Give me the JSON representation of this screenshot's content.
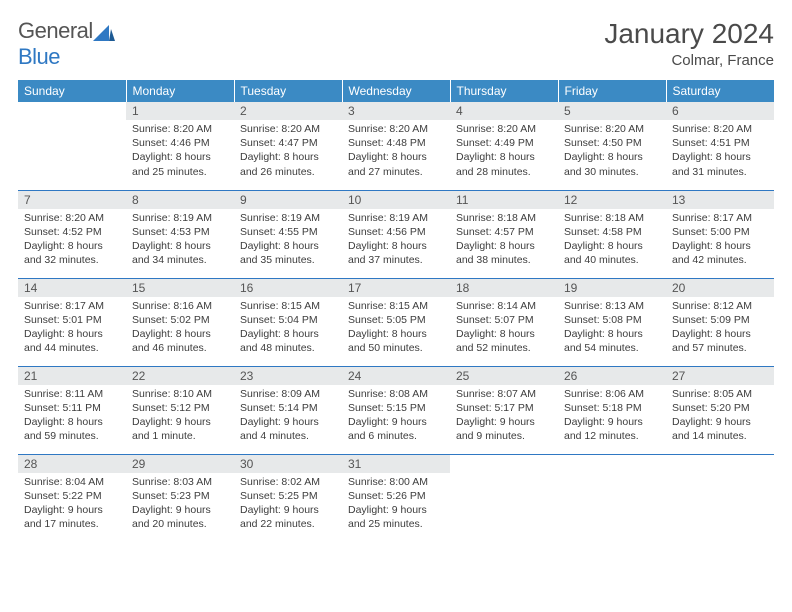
{
  "brand": {
    "part1": "General",
    "part2": "Blue"
  },
  "title": "January 2024",
  "location": "Colmar, France",
  "colors": {
    "header_bg": "#3b8ac4",
    "header_text": "#ffffff",
    "daynum_bg": "#e7e9ea",
    "text": "#3d3d3d",
    "rule": "#2f78c3",
    "brand_gray": "#555555",
    "brand_blue": "#2f78c3"
  },
  "dow": [
    "Sunday",
    "Monday",
    "Tuesday",
    "Wednesday",
    "Thursday",
    "Friday",
    "Saturday"
  ],
  "weeks": [
    [
      {
        "n": "",
        "sr": "",
        "ss": "",
        "dl": ""
      },
      {
        "n": "1",
        "sr": "8:20 AM",
        "ss": "4:46 PM",
        "dl": "8 hours and 25 minutes."
      },
      {
        "n": "2",
        "sr": "8:20 AM",
        "ss": "4:47 PM",
        "dl": "8 hours and 26 minutes."
      },
      {
        "n": "3",
        "sr": "8:20 AM",
        "ss": "4:48 PM",
        "dl": "8 hours and 27 minutes."
      },
      {
        "n": "4",
        "sr": "8:20 AM",
        "ss": "4:49 PM",
        "dl": "8 hours and 28 minutes."
      },
      {
        "n": "5",
        "sr": "8:20 AM",
        "ss": "4:50 PM",
        "dl": "8 hours and 30 minutes."
      },
      {
        "n": "6",
        "sr": "8:20 AM",
        "ss": "4:51 PM",
        "dl": "8 hours and 31 minutes."
      }
    ],
    [
      {
        "n": "7",
        "sr": "8:20 AM",
        "ss": "4:52 PM",
        "dl": "8 hours and 32 minutes."
      },
      {
        "n": "8",
        "sr": "8:19 AM",
        "ss": "4:53 PM",
        "dl": "8 hours and 34 minutes."
      },
      {
        "n": "9",
        "sr": "8:19 AM",
        "ss": "4:55 PM",
        "dl": "8 hours and 35 minutes."
      },
      {
        "n": "10",
        "sr": "8:19 AM",
        "ss": "4:56 PM",
        "dl": "8 hours and 37 minutes."
      },
      {
        "n": "11",
        "sr": "8:18 AM",
        "ss": "4:57 PM",
        "dl": "8 hours and 38 minutes."
      },
      {
        "n": "12",
        "sr": "8:18 AM",
        "ss": "4:58 PM",
        "dl": "8 hours and 40 minutes."
      },
      {
        "n": "13",
        "sr": "8:17 AM",
        "ss": "5:00 PM",
        "dl": "8 hours and 42 minutes."
      }
    ],
    [
      {
        "n": "14",
        "sr": "8:17 AM",
        "ss": "5:01 PM",
        "dl": "8 hours and 44 minutes."
      },
      {
        "n": "15",
        "sr": "8:16 AM",
        "ss": "5:02 PM",
        "dl": "8 hours and 46 minutes."
      },
      {
        "n": "16",
        "sr": "8:15 AM",
        "ss": "5:04 PM",
        "dl": "8 hours and 48 minutes."
      },
      {
        "n": "17",
        "sr": "8:15 AM",
        "ss": "5:05 PM",
        "dl": "8 hours and 50 minutes."
      },
      {
        "n": "18",
        "sr": "8:14 AM",
        "ss": "5:07 PM",
        "dl": "8 hours and 52 minutes."
      },
      {
        "n": "19",
        "sr": "8:13 AM",
        "ss": "5:08 PM",
        "dl": "8 hours and 54 minutes."
      },
      {
        "n": "20",
        "sr": "8:12 AM",
        "ss": "5:09 PM",
        "dl": "8 hours and 57 minutes."
      }
    ],
    [
      {
        "n": "21",
        "sr": "8:11 AM",
        "ss": "5:11 PM",
        "dl": "8 hours and 59 minutes."
      },
      {
        "n": "22",
        "sr": "8:10 AM",
        "ss": "5:12 PM",
        "dl": "9 hours and 1 minute."
      },
      {
        "n": "23",
        "sr": "8:09 AM",
        "ss": "5:14 PM",
        "dl": "9 hours and 4 minutes."
      },
      {
        "n": "24",
        "sr": "8:08 AM",
        "ss": "5:15 PM",
        "dl": "9 hours and 6 minutes."
      },
      {
        "n": "25",
        "sr": "8:07 AM",
        "ss": "5:17 PM",
        "dl": "9 hours and 9 minutes."
      },
      {
        "n": "26",
        "sr": "8:06 AM",
        "ss": "5:18 PM",
        "dl": "9 hours and 12 minutes."
      },
      {
        "n": "27",
        "sr": "8:05 AM",
        "ss": "5:20 PM",
        "dl": "9 hours and 14 minutes."
      }
    ],
    [
      {
        "n": "28",
        "sr": "8:04 AM",
        "ss": "5:22 PM",
        "dl": "9 hours and 17 minutes."
      },
      {
        "n": "29",
        "sr": "8:03 AM",
        "ss": "5:23 PM",
        "dl": "9 hours and 20 minutes."
      },
      {
        "n": "30",
        "sr": "8:02 AM",
        "ss": "5:25 PM",
        "dl": "9 hours and 22 minutes."
      },
      {
        "n": "31",
        "sr": "8:00 AM",
        "ss": "5:26 PM",
        "dl": "9 hours and 25 minutes."
      },
      {
        "n": "",
        "sr": "",
        "ss": "",
        "dl": ""
      },
      {
        "n": "",
        "sr": "",
        "ss": "",
        "dl": ""
      },
      {
        "n": "",
        "sr": "",
        "ss": "",
        "dl": ""
      }
    ]
  ],
  "labels": {
    "sunrise": "Sunrise:",
    "sunset": "Sunset:",
    "daylight": "Daylight:"
  }
}
